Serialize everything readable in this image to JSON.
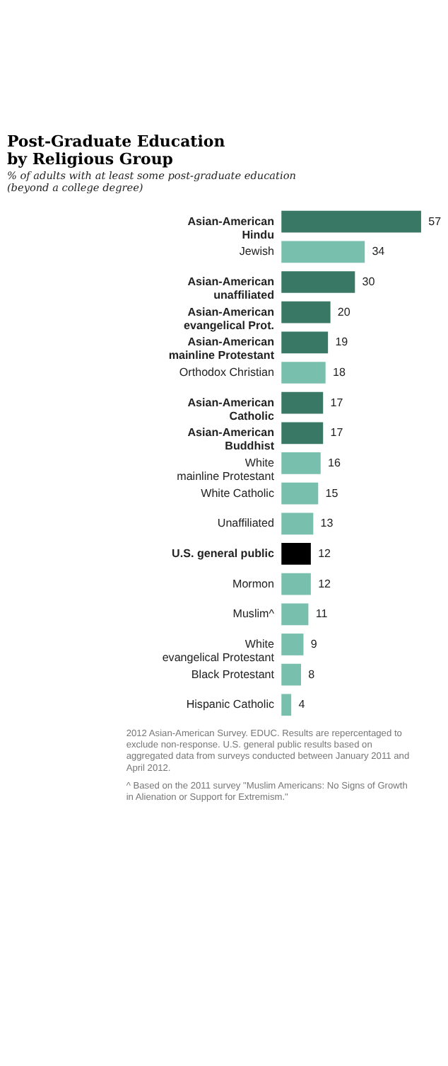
{
  "chart_data": {
    "type": "bar",
    "orientation": "horizontal",
    "title": "Post-Graduate Education\nby Religious Group",
    "subtitle": "% of adults with at least some post-graduate education\n(beyond a college degree)",
    "categories": [
      "Asian-American\nHindu",
      "Jewish",
      "Asian-American\nunaffiliated",
      "Asian-American\nevangelical Prot.",
      "Asian-American\nmainline Protestant",
      "Orthodox Christian",
      "Asian-American\nCatholic",
      "Asian-American\nBuddhist",
      "White\nmainline Protestant",
      "White Catholic",
      "Unaffiliated",
      "U.S. general public",
      "Mormon",
      "Muslim^",
      "White\nevangelical Protestant",
      "Black Protestant",
      "Hispanic Catholic"
    ],
    "values": [
      57,
      34,
      30,
      20,
      19,
      18,
      17,
      17,
      16,
      15,
      13,
      12,
      12,
      11,
      9,
      8,
      4
    ],
    "colors": [
      "#3a7866",
      "#78bfad",
      "#3a7866",
      "#3a7866",
      "#3a7866",
      "#78bfad",
      "#3a7866",
      "#3a7866",
      "#78bfad",
      "#78bfad",
      "#78bfad",
      "#000000",
      "#78bfad",
      "#78bfad",
      "#78bfad",
      "#78bfad",
      "#78bfad"
    ],
    "data_labels": true,
    "annotations": [
      "2012 Asian-American Survey. EDUC. Results are repercentaged to exclude non-response. U.S. general public results based on aggregated data from surveys conducted between January 2011 and April 2012.",
      "^ Based on the 2011 survey \"Muslim Americans: No Signs of Growth in Alienation or Support for Extremism.\""
    ]
  }
}
